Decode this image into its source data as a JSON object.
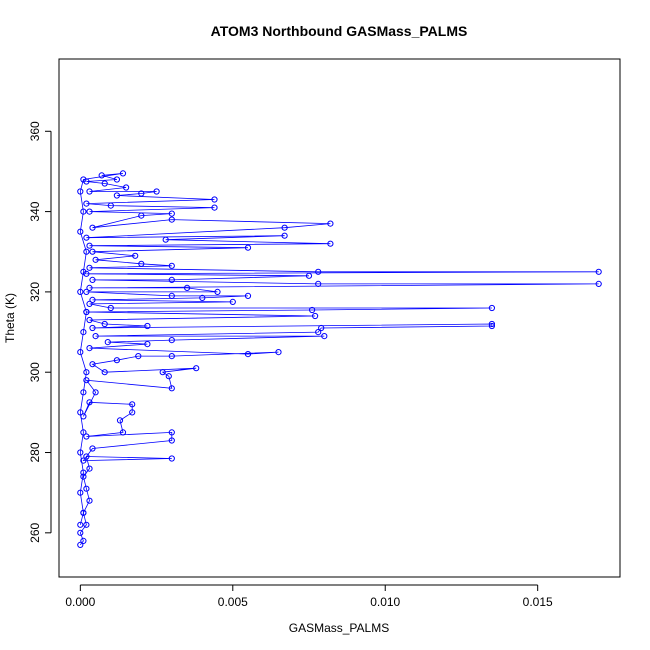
{
  "chart_data": {
    "type": "scatter",
    "title": "ATOM3 Northbound GASMass_PALMS",
    "xlabel": "GASMass_PALMS",
    "ylabel": "Theta (K)",
    "xlim": [
      -0.0007,
      0.0177
    ],
    "ylim": [
      249,
      378
    ],
    "x_ticks": [
      {
        "value": 0,
        "label": "0.000"
      },
      {
        "value": 0.005,
        "label": "0.005"
      },
      {
        "value": 0.01,
        "label": "0.010"
      },
      {
        "value": 0.015,
        "label": "0.015"
      }
    ],
    "y_ticks": [
      {
        "value": 260,
        "label": "260"
      },
      {
        "value": 280,
        "label": "280"
      },
      {
        "value": 300,
        "label": "300"
      },
      {
        "value": 320,
        "label": "320"
      },
      {
        "value": 340,
        "label": "340"
      },
      {
        "value": 360,
        "label": "360"
      }
    ],
    "grid": false,
    "legend": "none",
    "series": [
      {
        "color": "#0000ff",
        "marker": "open-circle",
        "connected": true,
        "points": [
          [
            0.0,
            257
          ],
          [
            0.0001,
            258
          ],
          [
            0.0,
            260
          ],
          [
            0.0002,
            262
          ],
          [
            0.0001,
            265
          ],
          [
            0.0003,
            268
          ],
          [
            0.0002,
            271
          ],
          [
            0.0001,
            274
          ],
          [
            0.0003,
            276
          ],
          [
            0.0002,
            279
          ],
          [
            0.003,
            278.5
          ],
          [
            0.0001,
            278
          ],
          [
            0.0004,
            281
          ],
          [
            0.003,
            283
          ],
          [
            0.003,
            285
          ],
          [
            0.0002,
            284
          ],
          [
            0.0014,
            285
          ],
          [
            0.0013,
            288
          ],
          [
            0.0017,
            290
          ],
          [
            0.0017,
            292
          ],
          [
            0.0003,
            292.5
          ],
          [
            0.0001,
            289
          ],
          [
            0.0005,
            295
          ],
          [
            0.0002,
            298
          ],
          [
            0.003,
            296
          ],
          [
            0.0029,
            299
          ],
          [
            0.0027,
            300
          ],
          [
            0.0038,
            301
          ],
          [
            0.0008,
            300
          ],
          [
            0.0004,
            302
          ],
          [
            0.0012,
            303
          ],
          [
            0.0019,
            304
          ],
          [
            0.003,
            304
          ],
          [
            0.0065,
            305
          ],
          [
            0.0055,
            304.5
          ],
          [
            0.0003,
            306
          ],
          [
            0.0022,
            307
          ],
          [
            0.0009,
            307.5
          ],
          [
            0.003,
            308
          ],
          [
            0.008,
            309
          ],
          [
            0.0005,
            309
          ],
          [
            0.0078,
            310
          ],
          [
            0.0079,
            311
          ],
          [
            0.0135,
            311.5
          ],
          [
            0.0135,
            312
          ],
          [
            0.0004,
            311
          ],
          [
            0.0022,
            311.5
          ],
          [
            0.0008,
            312
          ],
          [
            0.0003,
            313
          ],
          [
            0.0077,
            314
          ],
          [
            0.0002,
            315
          ],
          [
            0.0076,
            315.5
          ],
          [
            0.0135,
            316
          ],
          [
            0.001,
            316
          ],
          [
            0.0003,
            317
          ],
          [
            0.005,
            317.5
          ],
          [
            0.0004,
            318
          ],
          [
            0.004,
            318.5
          ],
          [
            0.0055,
            319
          ],
          [
            0.003,
            319
          ],
          [
            0.0002,
            320
          ],
          [
            0.0045,
            320
          ],
          [
            0.0035,
            321
          ],
          [
            0.0003,
            321
          ],
          [
            0.017,
            322
          ],
          [
            0.0078,
            322
          ],
          [
            0.0004,
            323
          ],
          [
            0.003,
            323
          ],
          [
            0.0075,
            324
          ],
          [
            0.0002,
            324.5
          ],
          [
            0.017,
            325
          ],
          [
            0.0078,
            325
          ],
          [
            0.0003,
            326
          ],
          [
            0.003,
            326.5
          ],
          [
            0.002,
            327
          ],
          [
            0.0005,
            328
          ],
          [
            0.0018,
            329
          ],
          [
            0.0004,
            330
          ],
          [
            0.0055,
            331
          ],
          [
            0.0003,
            331.5
          ],
          [
            0.0082,
            332
          ],
          [
            0.0028,
            333
          ],
          [
            0.0067,
            334
          ],
          [
            0.0002,
            333.5
          ],
          [
            0.0067,
            336
          ],
          [
            0.0082,
            337
          ],
          [
            0.003,
            338
          ],
          [
            0.0004,
            336
          ],
          [
            0.002,
            339
          ],
          [
            0.003,
            339.5
          ],
          [
            0.0003,
            340
          ],
          [
            0.0044,
            341
          ],
          [
            0.001,
            341.5
          ],
          [
            0.0002,
            342
          ],
          [
            0.0044,
            343
          ],
          [
            0.0012,
            344
          ],
          [
            0.002,
            344.5
          ],
          [
            0.0025,
            345
          ],
          [
            0.0003,
            345
          ],
          [
            0.0015,
            346
          ],
          [
            0.0008,
            347
          ],
          [
            0.0002,
            347.5
          ],
          [
            0.0012,
            348
          ],
          [
            0.0007,
            349
          ],
          [
            0.0014,
            349.5
          ],
          [
            0.0001,
            348
          ],
          [
            0.0,
            345
          ],
          [
            0.0001,
            340
          ],
          [
            0.0,
            335
          ],
          [
            0.0002,
            330
          ],
          [
            0.0001,
            325
          ],
          [
            0.0,
            320
          ],
          [
            0.0002,
            315
          ],
          [
            0.0001,
            310
          ],
          [
            0.0,
            305
          ],
          [
            0.0002,
            300
          ],
          [
            0.0001,
            295
          ],
          [
            0.0,
            290
          ],
          [
            0.0001,
            285
          ],
          [
            0.0,
            280
          ],
          [
            0.0001,
            275
          ],
          [
            0.0,
            270
          ],
          [
            0.0001,
            265
          ],
          [
            0.0,
            262
          ]
        ]
      }
    ]
  }
}
